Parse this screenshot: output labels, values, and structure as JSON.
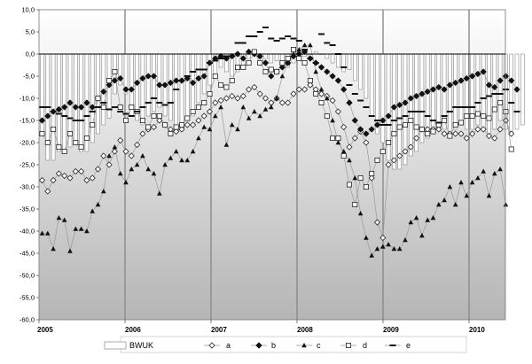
{
  "chart_data": {
    "type": "line",
    "title": "",
    "xlabel": "",
    "ylabel": "",
    "ylim": [
      -60,
      10
    ],
    "yticks": [
      "10,0",
      "5,0",
      "0,0",
      "-5,0",
      "-10,0",
      "-15,0",
      "-20,0",
      "-25,0",
      "-30,0",
      "-35,0",
      "-40,0",
      "-45,0",
      "-50,0",
      "-55,0",
      "-60,0"
    ],
    "year_labels": [
      "2005",
      "2006",
      "2007",
      "2008",
      "2009",
      "2010"
    ],
    "grid": false,
    "legend_position": "bottom",
    "legend": [
      "BWUK",
      "a",
      "b",
      "c",
      "d",
      "e"
    ],
    "colors": {
      "line": "#999999",
      "marker": "#111111",
      "bar_edge": "#888888",
      "plot_top": "#ffffff",
      "plot_bottom": "#b5b5b5"
    },
    "series": [
      {
        "name": "BWUK",
        "type": "bar",
        "values": [
          -18.5,
          -24,
          -24,
          -22,
          -22,
          -21,
          -20,
          -22,
          -22,
          -20,
          -18,
          -16,
          -14.5,
          -9,
          -7,
          -9,
          -14,
          -15,
          -16,
          -14,
          -13,
          -12,
          -14,
          -15,
          -16,
          -16,
          -15,
          -14,
          -11,
          -9,
          -7,
          -5,
          -3,
          -4,
          -5,
          -4,
          -3,
          -1,
          0,
          -1,
          -1,
          -2,
          -1.5,
          -2,
          -3,
          -2,
          -1,
          -0.5,
          0,
          0.5,
          0,
          -1,
          -2,
          -3,
          -4,
          -3.5,
          -6,
          -8,
          -10,
          -14,
          -18,
          -20,
          -24,
          -26,
          -26,
          -25,
          -23,
          -22,
          -20,
          -19,
          -17,
          -16,
          -17,
          -18,
          -17,
          -16,
          -17,
          -17,
          -16,
          -17,
          -18,
          -17,
          -15,
          -17,
          -18,
          -17,
          -16
        ]
      },
      {
        "name": "a",
        "marker": "open-diamond",
        "values": [
          -28.5,
          -31,
          -28.5,
          -27,
          -27.5,
          -28,
          -26.5,
          -26.5,
          -28.5,
          -28,
          -26,
          -23,
          -25,
          -22,
          -19.5,
          -22,
          -23,
          -20.5,
          -18,
          -17,
          -16.5,
          -15,
          -16,
          -17,
          -17.5,
          -17,
          -16,
          -16,
          -15,
          -14,
          -13,
          -11,
          -10.5,
          -10,
          -9.5,
          -10,
          -9.5,
          -8,
          -7.5,
          -9,
          -10,
          -11,
          -10,
          -11,
          -11,
          -9,
          -8,
          -8,
          -7,
          -8,
          -9,
          -9.5,
          -10.5,
          -13,
          -16.5,
          -21,
          -19,
          -17.5,
          -20,
          -28,
          -38,
          -41.5,
          -25,
          -24,
          -23,
          -22,
          -21,
          -19,
          -17,
          -17,
          -17,
          -17,
          -18,
          -18,
          -18,
          -18,
          -19,
          -18,
          -17,
          -17,
          -18.5,
          -19,
          -17,
          -15,
          -18
        ]
      },
      {
        "name": "b",
        "marker": "filled-diamond",
        "values": [
          -15,
          -14,
          -13,
          -12.5,
          -12,
          -11,
          -12,
          -12,
          -11,
          -12,
          -10,
          -8.5,
          -7,
          -6,
          -5.5,
          -8,
          -8,
          -6.5,
          -5.5,
          -5,
          -5,
          -7,
          -7,
          -6.5,
          -6,
          -6,
          -5.5,
          -6.5,
          -5.5,
          -5,
          -2,
          -1,
          -0.5,
          -1,
          -0.5,
          0,
          -1,
          0.5,
          0,
          -0.5,
          -2,
          -5,
          -4,
          -3,
          -2,
          -0.5,
          0,
          0.5,
          -1,
          -2,
          -3,
          -4,
          -5,
          -6,
          -8,
          -11,
          -15,
          -17,
          -18,
          -17,
          -16,
          -15,
          -14,
          -12,
          -11.5,
          -11,
          -10,
          -9.5,
          -9,
          -8.5,
          -8,
          -7.5,
          -8,
          -7,
          -6.5,
          -6,
          -5.5,
          -5,
          -4.5,
          -4,
          -7,
          -7.5,
          -6,
          -5,
          -6,
          -8
        ]
      },
      {
        "name": "c",
        "marker": "filled-triangle",
        "values": [
          -40.5,
          -40.5,
          -44,
          -37,
          -37.5,
          -44.5,
          -39.5,
          -39.5,
          -40,
          -35.5,
          -34,
          -31,
          -23,
          -21,
          -27,
          -29,
          -26,
          -25,
          -23,
          -26,
          -27,
          -31.5,
          -25,
          -23.5,
          -22,
          -24,
          -24,
          -22,
          -19,
          -16.5,
          -17,
          -14,
          -12,
          -20.5,
          -16,
          -17,
          -12,
          -14.5,
          -13,
          -14,
          -12.5,
          -12,
          -10,
          -5,
          -2,
          0,
          1,
          2,
          2,
          -4,
          -8,
          -10,
          -15,
          -20,
          -22,
          -24,
          -28,
          -36,
          -41.5,
          -45.5,
          -44,
          -43.5,
          -43,
          -44,
          -44,
          -42,
          -38,
          -37,
          -41,
          -37.5,
          -37,
          -34,
          -33,
          -30,
          -34,
          -29,
          -32,
          -29,
          -28,
          -26.5,
          -32,
          -27,
          -26,
          -34
        ]
      },
      {
        "name": "d",
        "marker": "open-square",
        "values": [
          -18,
          -20,
          -17,
          -21,
          -22,
          -18,
          -20,
          -21,
          -19,
          -16,
          -10,
          -12,
          -6,
          -4,
          -12,
          -15,
          -12,
          -13,
          -15,
          -16.5,
          -14,
          -14,
          -16,
          -18,
          -16.5,
          -16,
          -14.5,
          -13,
          -12,
          -11,
          -9,
          -5,
          -7,
          -7.5,
          -6,
          -3,
          -3,
          -2,
          0.5,
          -2,
          -4,
          -3.5,
          -4,
          -2,
          -1,
          1,
          -1,
          -2,
          -6,
          -9,
          -11,
          -14,
          -19,
          -19,
          -23,
          -29.5,
          -34,
          -28,
          -30,
          -27,
          -24,
          -22,
          -20,
          -18,
          -16.5,
          -16,
          -15,
          -16.5,
          -17,
          -18,
          -17.5,
          -16,
          -15,
          -18.5,
          -16,
          -15.5,
          -14,
          -14,
          -13.5,
          -14,
          -14.5,
          -12.5,
          -11,
          -13,
          -21.5
        ]
      },
      {
        "name": "e",
        "marker": "dash",
        "values": [
          -12,
          -12,
          -13,
          -13.5,
          -14,
          -14.5,
          -15,
          -15,
          -14,
          -13,
          -12,
          -11,
          -12.5,
          -12,
          -13,
          -13.5,
          -14,
          -13,
          -12,
          -11,
          -10,
          -11,
          -11.5,
          -11,
          -8,
          -6,
          -5,
          -4,
          -3.5,
          -3.5,
          -2,
          -1.5,
          -1,
          -0.5,
          -0.5,
          2.5,
          2.5,
          4,
          4,
          5,
          6,
          3.5,
          3,
          3.5,
          4,
          3.5,
          3,
          1,
          -1,
          -2,
          4.5,
          2.5,
          2,
          0,
          -3,
          -7,
          -9,
          -10.5,
          -12,
          -14,
          -15,
          -16,
          -16,
          -15,
          -14.5,
          -14,
          -13,
          -13,
          -13,
          -14,
          -15,
          -15.5,
          -14,
          -13,
          -12,
          -12,
          -12,
          -12,
          -11,
          -10,
          -9.5,
          -9,
          -9,
          -8,
          -11,
          -13
        ]
      }
    ]
  }
}
